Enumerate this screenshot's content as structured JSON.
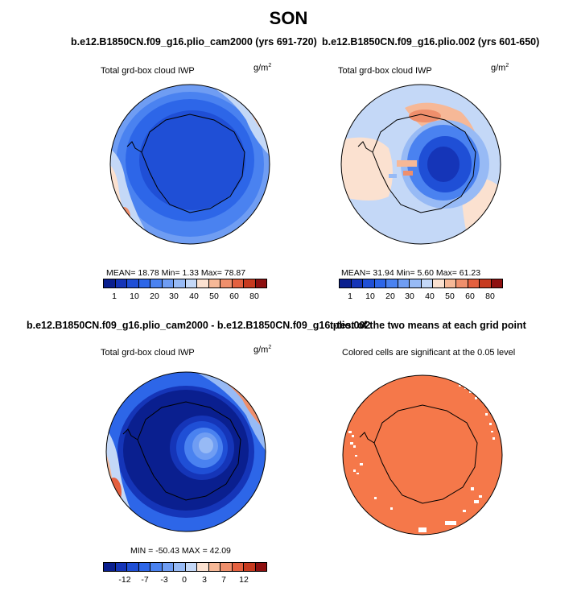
{
  "season": "SON",
  "panels": {
    "p1": {
      "title": "b.e12.B1850CN.f09_g16.plio_cam2000 (yrs 691-720)",
      "variable": "Total grd-box cloud IWP",
      "units": "g/m",
      "units_exp": "2",
      "stats": "MEAN=   18.78   Min=    1.33   Max=   78.87",
      "colorbar_ticks": [
        "1",
        "10",
        "20",
        "30",
        "40",
        "50",
        "60",
        "80"
      ]
    },
    "p2": {
      "title": "b.e12.B1850CN.f09_g16.plio.002 (yrs 601-650)",
      "variable": "Total grd-box cloud IWP",
      "units": "g/m",
      "units_exp": "2",
      "stats": "MEAN=   31.94   Min=    5.60   Max=   61.23",
      "colorbar_ticks": [
        "1",
        "10",
        "20",
        "30",
        "40",
        "50",
        "60",
        "80"
      ]
    },
    "p3": {
      "title": "b.e12.B1850CN.f09_g16.plio_cam2000 - b.e12.B1850CN.f09_g16.plio.002",
      "variable": "Total grd-box cloud IWP",
      "units": "g/m",
      "units_exp": "2",
      "stats": "MIN = -50.43 MAX =   42.09",
      "colorbar_ticks": [
        "-12",
        "-7",
        "-3",
        "0",
        "3",
        "7",
        "12"
      ]
    },
    "p4": {
      "title": "t-test of the two means at each grid point",
      "subtitle": "Colored cells are significant at the 0.05 level"
    }
  },
  "colors": {
    "scale_14": [
      "#0a1f8f",
      "#1535b8",
      "#1f4fd6",
      "#2d66e8",
      "#4a82f0",
      "#6f9df3",
      "#97baf5",
      "#c4d8f7",
      "#fbe1d0",
      "#f6b897",
      "#ef8f6c",
      "#e4603f",
      "#c73a1f",
      "#8e1010"
    ],
    "significance": "#f5784a",
    "coastline": "#000000"
  }
}
